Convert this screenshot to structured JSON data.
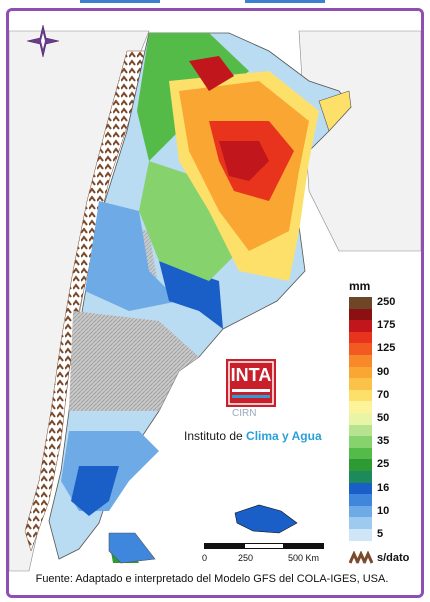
{
  "legend": {
    "unit": "mm",
    "classes": [
      {
        "label": "250",
        "color": "#6e4527"
      },
      {
        "label": "",
        "color": "#8a1014"
      },
      {
        "label": "175",
        "color": "#c0161c"
      },
      {
        "label": "",
        "color": "#e8331d"
      },
      {
        "label": "125",
        "color": "#f35a22"
      },
      {
        "label": "",
        "color": "#f7892a"
      },
      {
        "label": "90",
        "color": "#f9a632"
      },
      {
        "label": "",
        "color": "#fbc24a"
      },
      {
        "label": "70",
        "color": "#fde06a"
      },
      {
        "label": "",
        "color": "#fdf39a"
      },
      {
        "label": "50",
        "color": "#e9f5a6"
      },
      {
        "label": "",
        "color": "#b5e390"
      },
      {
        "label": "35",
        "color": "#86d36e"
      },
      {
        "label": "",
        "color": "#55bb48"
      },
      {
        "label": "25",
        "color": "#2e9a34"
      },
      {
        "label": "",
        "color": "#1c8a5a"
      },
      {
        "label": "16",
        "color": "#1a5fc8"
      },
      {
        "label": "",
        "color": "#3f86dd"
      },
      {
        "label": "10",
        "color": "#6eaae6"
      },
      {
        "label": "",
        "color": "#9fcaf0"
      },
      {
        "label": "5",
        "color": "#cfe6f8"
      }
    ],
    "no_data_label": "s/dato"
  },
  "logo": {
    "brand": "INTA",
    "sub": "CIRN",
    "institute_prefix": "Instituto de ",
    "institute_highlight": "Clima y Agua"
  },
  "scale_bar": {
    "ticks": [
      "0",
      "250",
      "500 Km"
    ]
  },
  "source": "Fuente: Adaptado e interpretado del Modelo GFS del COLA-IGES, USA."
}
